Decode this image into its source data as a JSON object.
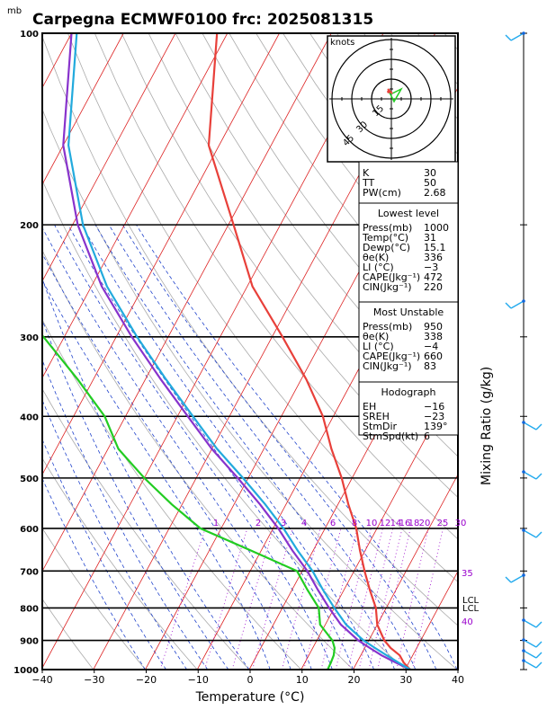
{
  "title": "Carpegna ECMWF0100  frc: 2025081315",
  "unit_mb": "mb",
  "chart_data": {
    "type": "line",
    "xlabel": "Temperature (°C)",
    "ylabel_right": "Mixing Ratio (g/kg)",
    "xlim": [
      -40,
      40
    ],
    "xticks": [
      "−40",
      "−30",
      "−20",
      "−10",
      "0",
      "10",
      "20",
      "30",
      "40"
    ],
    "pressure_levels": [
      "100",
      "200",
      "300",
      "400",
      "500",
      "600",
      "700",
      "800",
      "900",
      "1000"
    ],
    "pressure_values": [
      100,
      200,
      300,
      400,
      500,
      600,
      700,
      800,
      900,
      1000
    ],
    "series": [
      {
        "p": [
          1000,
          975,
          950,
          925,
          900,
          850,
          800,
          750,
          700,
          650,
          600,
          550,
          500,
          450,
          400,
          350,
          300,
          250,
          200,
          150,
          100
        ],
        "t": [
          31,
          29,
          27.5,
          25,
          23,
          20,
          18,
          15,
          12,
          9,
          6,
          2,
          -2,
          -7,
          -12,
          -19,
          -28,
          -39,
          -49,
          -62,
          -72
        ]
      },
      {
        "p": [
          1000,
          975,
          950,
          925,
          900,
          850,
          800,
          750,
          700,
          650,
          600,
          550,
          500,
          450,
          400,
          350,
          300,
          250,
          200,
          150,
          100
        ],
        "t": [
          15.1,
          15,
          14.8,
          14.2,
          13,
          9,
          7,
          3,
          -1,
          -12,
          -24,
          -32,
          -40,
          -48,
          -54,
          -63,
          -74,
          -88,
          -98,
          -108,
          -118
        ]
      },
      {
        "p": [
          1000,
          975,
          950,
          925,
          900,
          850,
          800,
          750,
          700,
          650,
          600,
          550,
          500,
          450,
          400,
          350,
          300,
          250,
          200,
          150,
          100
        ],
        "t": [
          31,
          27.5,
          24,
          21,
          18,
          13,
          9,
          5,
          1,
          -4,
          -9,
          -15,
          -22,
          -30,
          -38,
          -47,
          -57,
          -68,
          -79,
          -90,
          -100
        ]
      },
      {
        "p": [
          1000,
          975,
          950,
          925,
          900,
          850,
          800,
          750,
          700,
          650,
          600,
          550,
          500,
          450,
          400,
          350,
          300,
          250,
          200,
          150,
          100
        ],
        "t": [
          31,
          28,
          25,
          22,
          19,
          14,
          10,
          6,
          2,
          -3,
          -8,
          -14,
          -21,
          -29,
          -37,
          -46,
          -56,
          -67,
          -78,
          -89,
          -99
        ]
      }
    ],
    "mixing_ratio_labels": [
      "1",
      "2",
      "3",
      "4",
      "6",
      "8",
      "10",
      "12",
      "14",
      "16",
      "18",
      "20",
      "25",
      "30",
      "35",
      "40"
    ],
    "lcl_labels": [
      "LCL",
      "LCL"
    ]
  },
  "hodograph": {
    "unit": "knots",
    "rings": [
      "15",
      "30",
      "45"
    ]
  },
  "indices_top": [
    {
      "k": "K",
      "v": "30"
    },
    {
      "k": "TT",
      "v": "50"
    },
    {
      "k": "PW(cm)",
      "v": "2.68"
    }
  ],
  "lowest": {
    "header": "Lowest level",
    "rows": [
      {
        "k": "Press(mb)",
        "v": "1000"
      },
      {
        "k": "Temp(°C)",
        "v": "31"
      },
      {
        "k": "Dewp(°C)",
        "v": "15.1"
      },
      {
        "k": "θe(K)",
        "v": "336"
      },
      {
        "k": "LI (°C)",
        "v": "−3"
      },
      {
        "k": "CAPE(Jkg⁻¹)",
        "v": "472"
      },
      {
        "k": "CIN(Jkg⁻¹)",
        "v": "220"
      }
    ]
  },
  "unstable": {
    "header": "Most Unstable",
    "rows": [
      {
        "k": "Press(mb)",
        "v": "950"
      },
      {
        "k": "θe(K)",
        "v": "338"
      },
      {
        "k": "LI (°C)",
        "v": "−4"
      },
      {
        "k": "CAPE(Jkg⁻¹)",
        "v": "660"
      },
      {
        "k": "CIN(Jkg⁻¹)",
        "v": "83"
      }
    ]
  },
  "hodo_box": {
    "header": "Hodograph",
    "rows": [
      {
        "k": "EH",
        "v": "−16"
      },
      {
        "k": "SREH",
        "v": "−23"
      },
      {
        "k": "StmDir",
        "v": "139°"
      },
      {
        "k": "StmSpd(kt)",
        "v": "6"
      }
    ]
  },
  "colors": {
    "temp": "#e8403a",
    "dew": "#22cc22",
    "parcel": "#8833cc",
    "virtual": "#22aadd",
    "isotherm": "#dd2222",
    "dryad": "#aaaaaa",
    "moistad": "#2244cc",
    "mix": "#9900cc",
    "wind": "#22aaee"
  }
}
